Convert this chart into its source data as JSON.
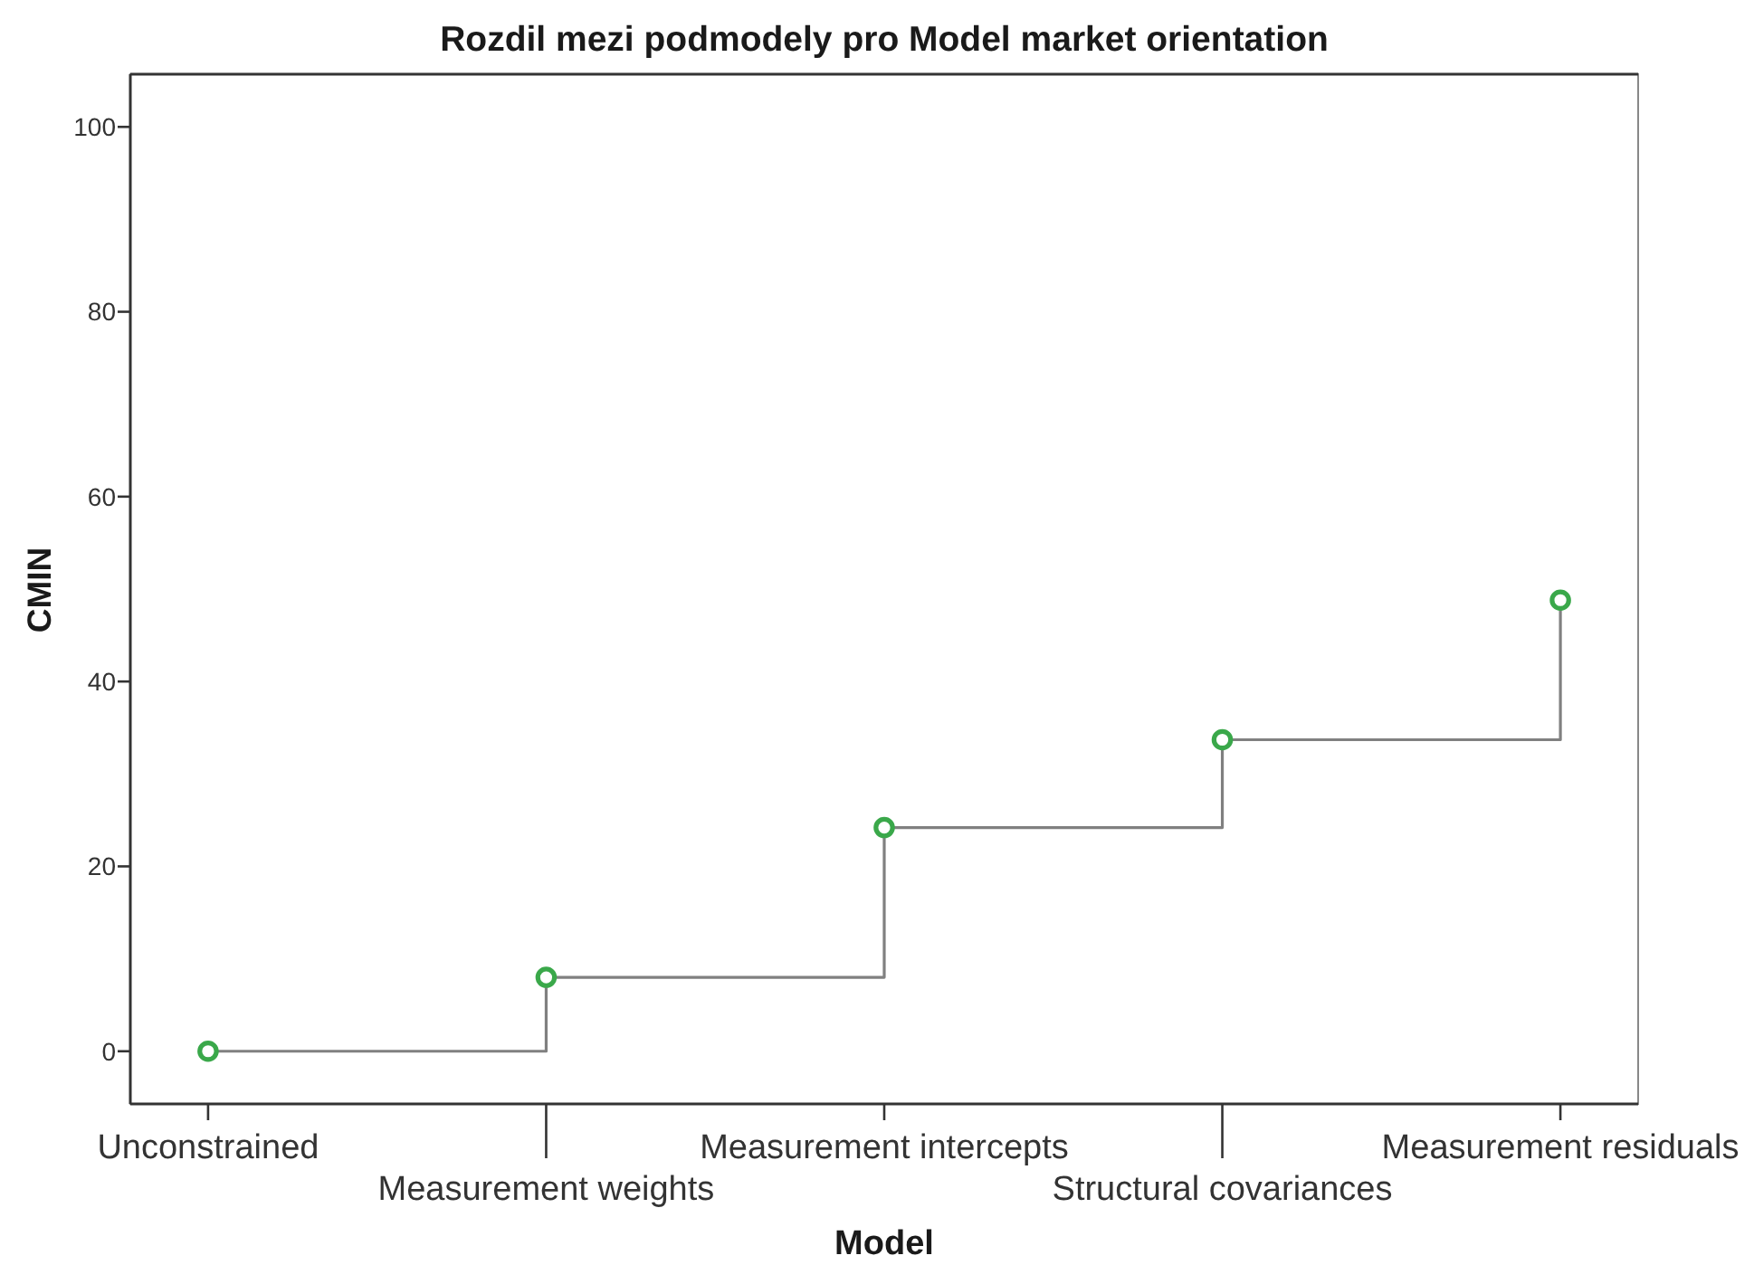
{
  "chart_data": {
    "type": "step",
    "title": "Rozdil mezi podmodely pro Model market orientation",
    "xlabel": "Model",
    "ylabel": "CMIN",
    "categories": [
      "Unconstrained",
      "Measurement weights",
      "Measurement intercepts",
      "Structural covariances",
      "Measurement residuals"
    ],
    "series": [
      {
        "color": "#808080",
        "marker": "none",
        "values": [
          0,
          8,
          24.2,
          33.7,
          48.8
        ]
      },
      {
        "type": "scatter",
        "color": "#3aa84a",
        "marker": "circle",
        "values": [
          0,
          8,
          24.2,
          33.7,
          48.8
        ]
      }
    ],
    "ylim": [
      -5.7,
      105.7
    ],
    "yticks": [
      0,
      20,
      40,
      60,
      80,
      100
    ],
    "line_style": "solid"
  }
}
